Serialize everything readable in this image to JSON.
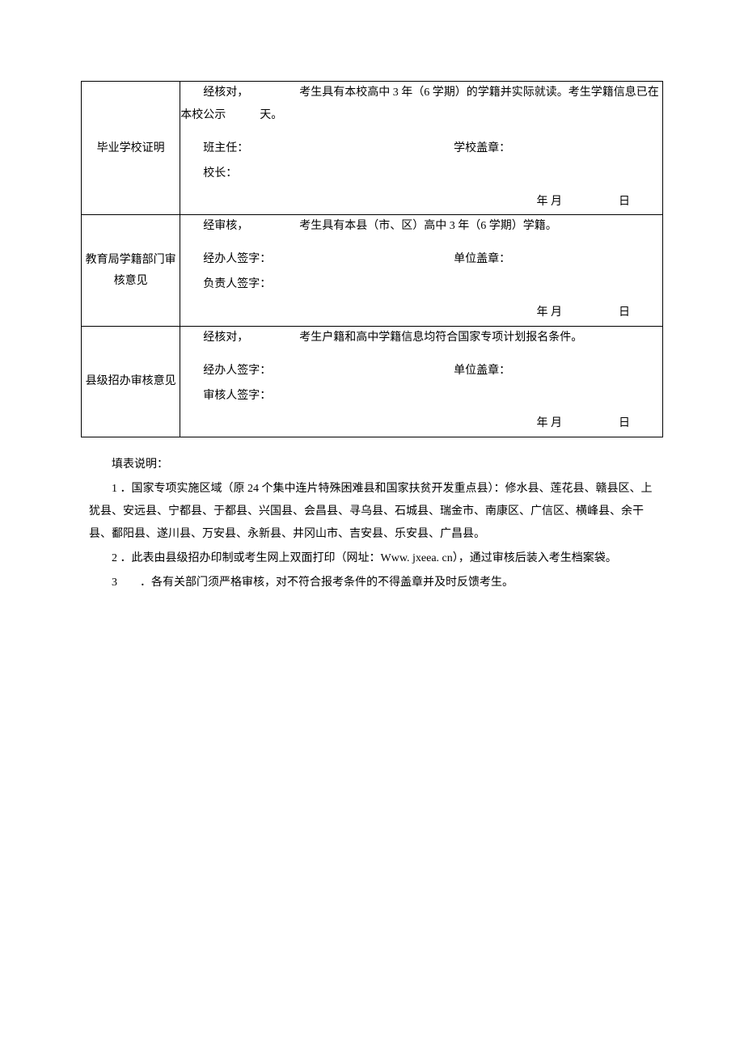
{
  "table": {
    "rows": [
      {
        "label": "毕业学校证明",
        "content_lines": [
          "经核对，　　　　　考生具有本校高中 3 年（6 学期）的学籍并实际就读。考生学籍信息已在本校公示　　　天。"
        ],
        "sig_left_1": "班主任：",
        "sig_right_1": "学校盖章：",
        "sig_left_2": "校长：",
        "date": "年 月　　　　　日"
      },
      {
        "label": "教育局学籍部门审核意见",
        "content_lines": [
          "经审核，　　　　　考生具有本县（市、区）高中 3 年（6 学期）学籍。"
        ],
        "sig_left_1": "经办人签字：",
        "sig_right_1": "单位盖章：",
        "sig_left_2": "负责人签字：",
        "date": "年 月　　　　　日"
      },
      {
        "label": "县级招办审核意见",
        "content_lines": [
          "经核对，　　　　　考生户籍和高中学籍信息均符合国家专项计划报名条件。"
        ],
        "sig_left_1": "经办人签字：",
        "sig_right_1": "单位盖章：",
        "sig_left_2": "审核人签字：",
        "date": "年 月　　　　　日"
      }
    ]
  },
  "notes": {
    "title": "填表说明：",
    "items": [
      "1 ．国家专项实施区域（原 24 个集中连片特殊困难县和国家扶贫开发重点县）：修水县、莲花县、赣县区、上犹县、安远县、宁都县、于都县、兴国县、会昌县、寻乌县、石城县、瑞金市、南康区、广信区、横峰县、余干县、鄱阳县、遂川县、万安县、永新县、井冈山市、吉安县、乐安县、广昌县。",
      "2 ．此表由县级招办印制或考生网上双面打印（网址：Www. jxeea. cn），通过审核后装入考生档案袋。",
      "3　　．各有关部门须严格审核，对不符合报考条件的不得盖章并及时反馈考生。"
    ]
  }
}
